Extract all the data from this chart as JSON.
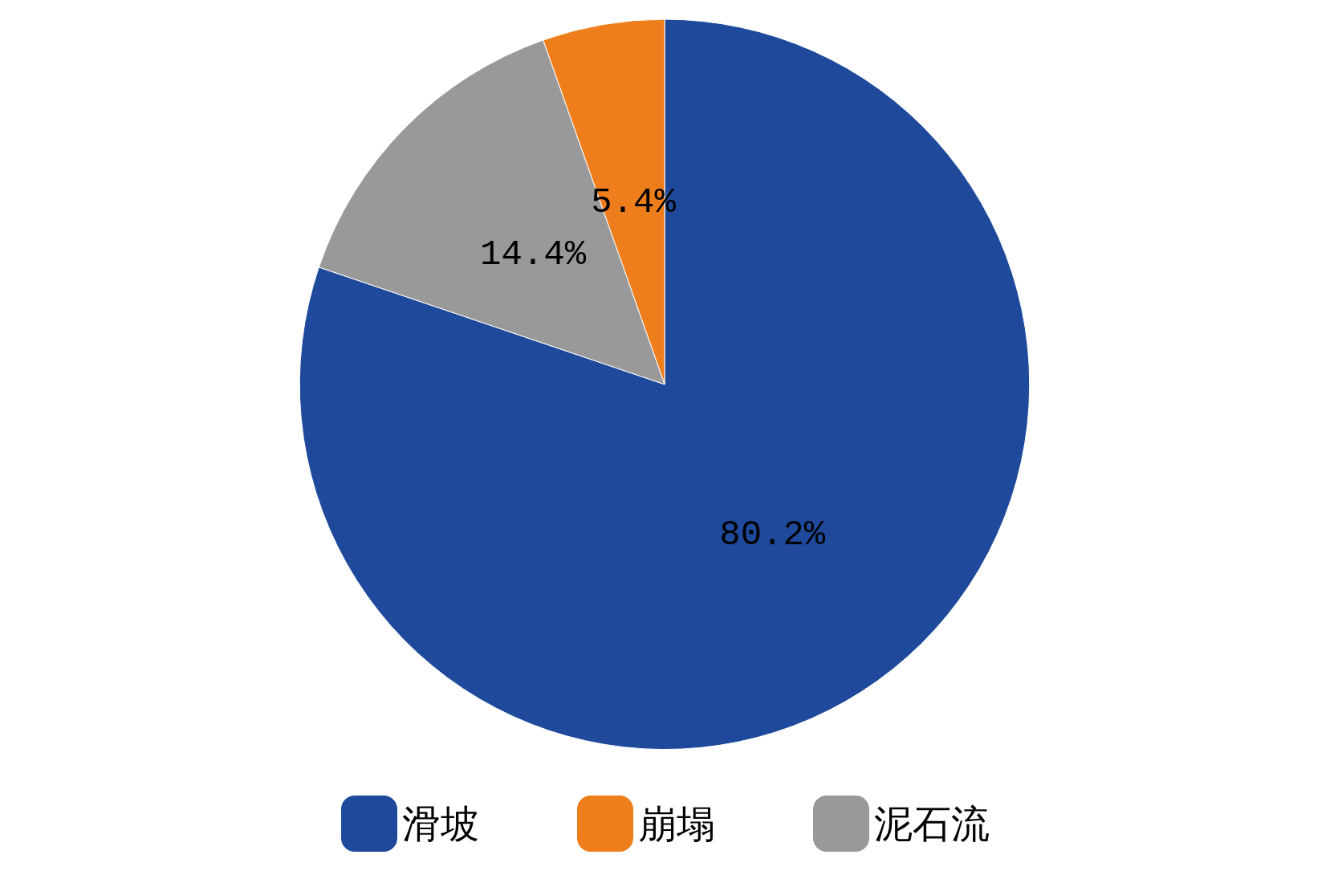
{
  "chart_data": {
    "type": "pie",
    "categories": [
      "滑坡",
      "崩塌",
      "泥石流"
    ],
    "values": [
      80.2,
      5.4,
      14.4
    ],
    "colors": [
      "#1f4a9c",
      "#ee7d1b",
      "#999999"
    ],
    "value_labels": [
      "80.2%",
      "5.4%",
      "14.4%"
    ],
    "legend": "bottom"
  }
}
